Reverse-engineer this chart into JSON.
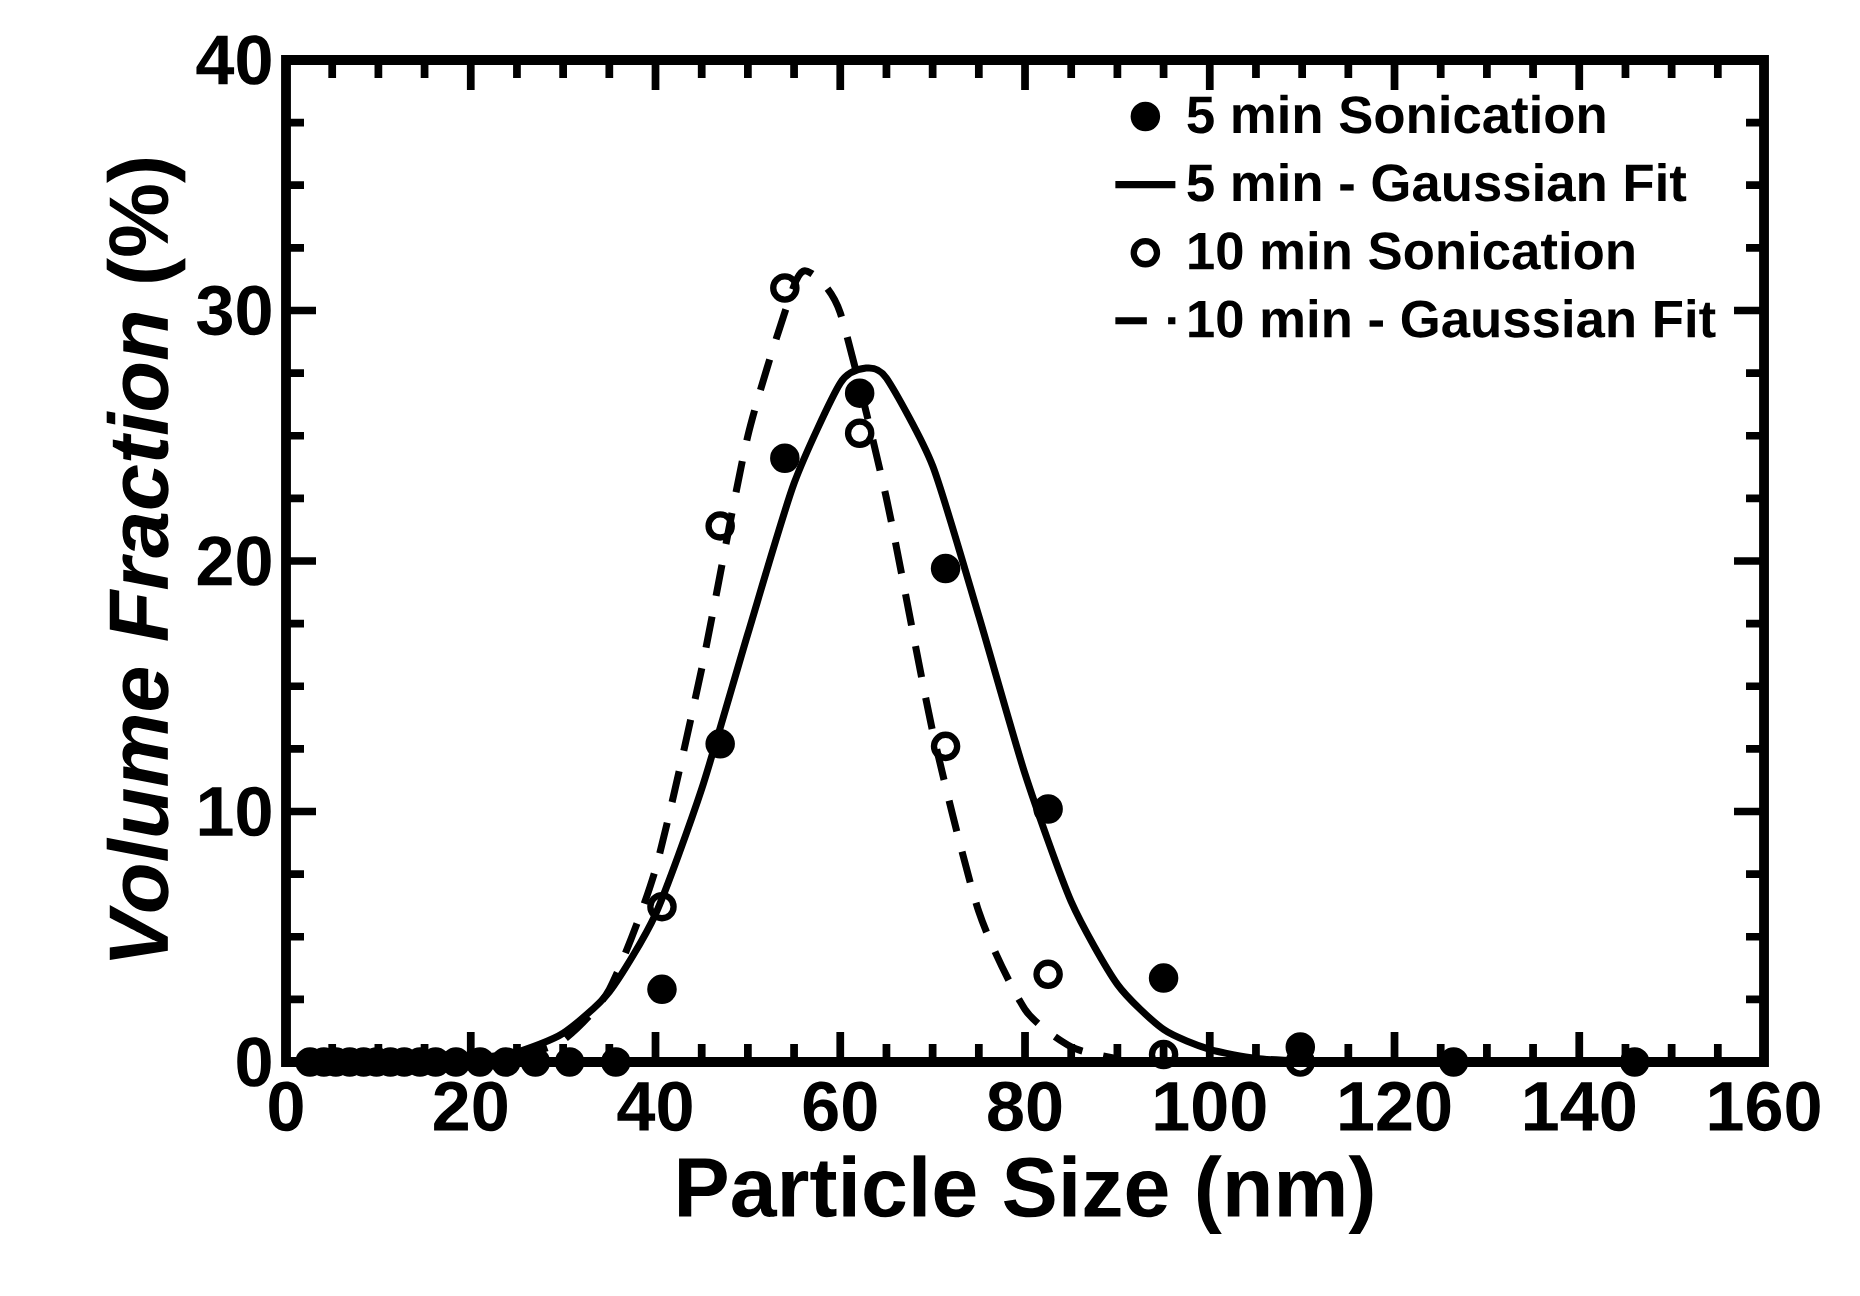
{
  "chart_data": {
    "type": "scatter",
    "xlabel": "Particle Size (nm)",
    "ylabel": "*Volume Fraction* (%)",
    "xlim": [
      0,
      160
    ],
    "xticks": [
      0,
      20,
      40,
      60,
      80,
      100,
      120,
      140,
      160
    ],
    "ylim": [
      0,
      40
    ],
    "yticks": [
      0,
      10,
      20,
      30,
      40
    ],
    "grid": false,
    "legend": "top right",
    "series": [
      {
        "name": "5 min Sonication",
        "marker": "circle",
        "color": "#000000",
        "x": [
          2.6,
          4.1,
          5.4,
          6.9,
          8.4,
          9.8,
          11.3,
          12.8,
          14.5,
          16.2,
          18.4,
          21,
          23.8,
          27,
          30.7,
          35.7,
          40.7,
          47,
          54,
          62.1,
          71.4,
          82.5,
          95,
          109.8,
          126.4,
          146
        ],
        "values": [
          0,
          0,
          0,
          0,
          0,
          0,
          0,
          0,
          0,
          0,
          0,
          0,
          0,
          0,
          0,
          0,
          2.9,
          12.7,
          24.1,
          26.7,
          19.7,
          10.1,
          3.35,
          0.6,
          0,
          0
        ]
      },
      {
        "name": "5 min  - Gaussian Fit",
        "type": "line",
        "line_style": "solid",
        "marker": "none",
        "color": "#000000",
        "x": [
          20,
          25,
          30,
          35,
          40,
          45,
          50,
          55,
          60,
          62.8,
          65,
          70,
          75,
          80,
          85,
          90,
          95,
          100,
          105,
          110
        ],
        "values": [
          0.12,
          0.4,
          1.15,
          2.8,
          5.9,
          10.9,
          17.1,
          23.1,
          27.1,
          27.7,
          27.3,
          23.8,
          17.8,
          11.5,
          6.4,
          3.1,
          1.3,
          0.5,
          0.14,
          0.04
        ]
      },
      {
        "name": "10 min Sonication",
        "marker": "open circle",
        "color": "#000000",
        "x": [
          40.7,
          47,
          54,
          62.1,
          71.4,
          82.5,
          95,
          109.8
        ],
        "values": [
          6.2,
          21.4,
          30.9,
          25.1,
          12.6,
          3.5,
          0.3,
          0
        ]
      },
      {
        "name": "10 min - Gaussian Fit",
        "type": "line",
        "line_style": "dashed",
        "marker": "none",
        "color": "#000000",
        "x": [
          25,
          30,
          35,
          40,
          45,
          50,
          55,
          56.8,
          60,
          65,
          70,
          75,
          80,
          85,
          90
        ],
        "values": [
          0.2,
          0.87,
          2.9,
          7.7,
          15.7,
          25.0,
          31.0,
          31.5,
          29.9,
          22.5,
          13.2,
          6.0,
          2.1,
          0.6,
          0.13
        ]
      }
    ]
  }
}
